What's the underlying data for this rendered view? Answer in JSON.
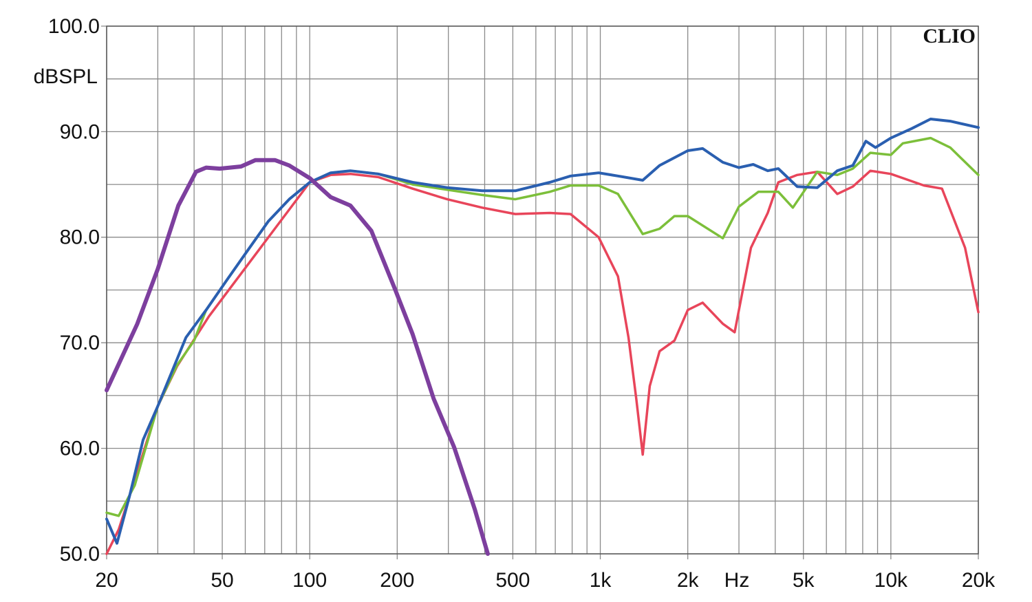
{
  "chart_data": {
    "type": "line",
    "ylabel": "dBSPL",
    "xlabel": "Hz",
    "watermark": "CLIO",
    "xscale": "log",
    "grid": true,
    "xlim": [
      20,
      20000
    ],
    "ylim": [
      50,
      100
    ],
    "xticks": [
      20,
      50,
      100,
      200,
      500,
      {
        "value": 1000,
        "label": "1k"
      },
      {
        "value": 2000,
        "label": "2k"
      },
      {
        "value": 5000,
        "label": "5k"
      },
      {
        "value": 10000,
        "label": "10k"
      },
      {
        "value": 20000,
        "label": "20k"
      }
    ],
    "xminor": [
      30,
      40,
      60,
      70,
      80,
      90,
      300,
      400,
      600,
      700,
      800,
      900,
      3000,
      4000,
      6000,
      7000,
      8000,
      9000
    ],
    "yticks": [
      {
        "value": 50,
        "label": "50.0"
      },
      {
        "value": 60,
        "label": "60.0"
      },
      {
        "value": 70,
        "label": "70.0"
      },
      {
        "value": 80,
        "label": "80.0"
      },
      {
        "value": 90,
        "label": "90.0"
      },
      {
        "value": 100,
        "label": "100.0"
      }
    ],
    "yminor": [
      55,
      65,
      75,
      85,
      95
    ],
    "series": [
      {
        "color": "#e8455a",
        "width": 3.5,
        "x": [
          20,
          22,
          25,
          30,
          35,
          45,
          100,
          118,
          138,
          172,
          226,
          297,
          392,
          510,
          670,
          790,
          987,
          1150,
          1250,
          1330,
          1400,
          1480,
          1600,
          1800,
          2000,
          2250,
          2640,
          2900,
          3300,
          3770,
          4100,
          4760,
          5580,
          6540,
          7400,
          8500,
          10000,
          11000,
          13000,
          15000,
          18000,
          20000
        ],
        "values": [
          50,
          52.3,
          57,
          64,
          67.8,
          72.5,
          85.2,
          85.9,
          86,
          85.7,
          84.6,
          83.6,
          82.8,
          82.2,
          82.3,
          82.2,
          80,
          76.3,
          70.5,
          64.7,
          59.4,
          65.9,
          69.2,
          70.2,
          73.1,
          73.8,
          71.8,
          71,
          79,
          82.3,
          85.2,
          85.9,
          86.2,
          84.1,
          84.8,
          86.3,
          86,
          85.6,
          84.9,
          84.6,
          79,
          72.9
        ]
      },
      {
        "color": "#7cbf3a",
        "width": 3.5,
        "x": [
          20,
          22,
          25,
          30,
          35,
          40,
          44,
          52,
          61,
          72,
          85,
          100,
          118,
          138,
          172,
          226,
          297,
          392,
          510,
          670,
          790,
          987,
          1150,
          1400,
          1600,
          1800,
          2000,
          2640,
          3000,
          3500,
          4100,
          4600,
          5580,
          6540,
          7400,
          8500,
          10000,
          11000,
          13700,
          16000,
          20000
        ],
        "values": [
          53.9,
          53.6,
          56.5,
          64,
          67.9,
          70.2,
          73.1,
          76,
          78.7,
          81.5,
          83.6,
          85.2,
          86.1,
          86.3,
          86,
          85,
          84.5,
          84,
          83.6,
          84.3,
          84.9,
          84.9,
          84.1,
          80.3,
          80.8,
          82,
          82,
          79.9,
          82.9,
          84.3,
          84.3,
          82.8,
          86.2,
          85.9,
          86.5,
          88,
          87.8,
          88.9,
          89.4,
          88.5,
          85.9
        ]
      },
      {
        "color": "#2a5fb0",
        "width": 4,
        "x": [
          20,
          21.7,
          24,
          26.7,
          30,
          37.5,
          44,
          52,
          61,
          72,
          85,
          100,
          118,
          138,
          172,
          226,
          297,
          392,
          510,
          670,
          790,
          987,
          1150,
          1400,
          1600,
          2000,
          2250,
          2640,
          3000,
          3360,
          3770,
          4100,
          4760,
          5580,
          6540,
          7400,
          8200,
          8850,
          10000,
          11800,
          13700,
          16000,
          20000
        ],
        "values": [
          53.3,
          51,
          55.5,
          60.8,
          64,
          70.5,
          73.1,
          76,
          78.7,
          81.5,
          83.6,
          85.2,
          86.1,
          86.3,
          86,
          85.2,
          84.7,
          84.4,
          84.4,
          85.2,
          85.8,
          86.1,
          85.8,
          85.4,
          86.8,
          88.2,
          88.4,
          87.1,
          86.6,
          86.9,
          86.3,
          86.5,
          84.8,
          84.7,
          86.3,
          86.8,
          89.1,
          88.5,
          89.4,
          90.3,
          91.2,
          91,
          90.4
        ]
      },
      {
        "color": "#7d3f9e",
        "width": 6,
        "x": [
          20,
          25.5,
          30,
          35.3,
          40.6,
          44,
          49,
          58,
          65,
          76,
          85,
          100,
          118,
          138,
          163,
          197,
          226,
          267,
          314,
          370,
          410
        ],
        "values": [
          65.5,
          71.8,
          77,
          83,
          86.2,
          86.6,
          86.5,
          86.7,
          87.3,
          87.3,
          86.8,
          85.6,
          83.8,
          83,
          80.6,
          75,
          70.8,
          64.7,
          60.1,
          54.2,
          50
        ]
      }
    ]
  }
}
